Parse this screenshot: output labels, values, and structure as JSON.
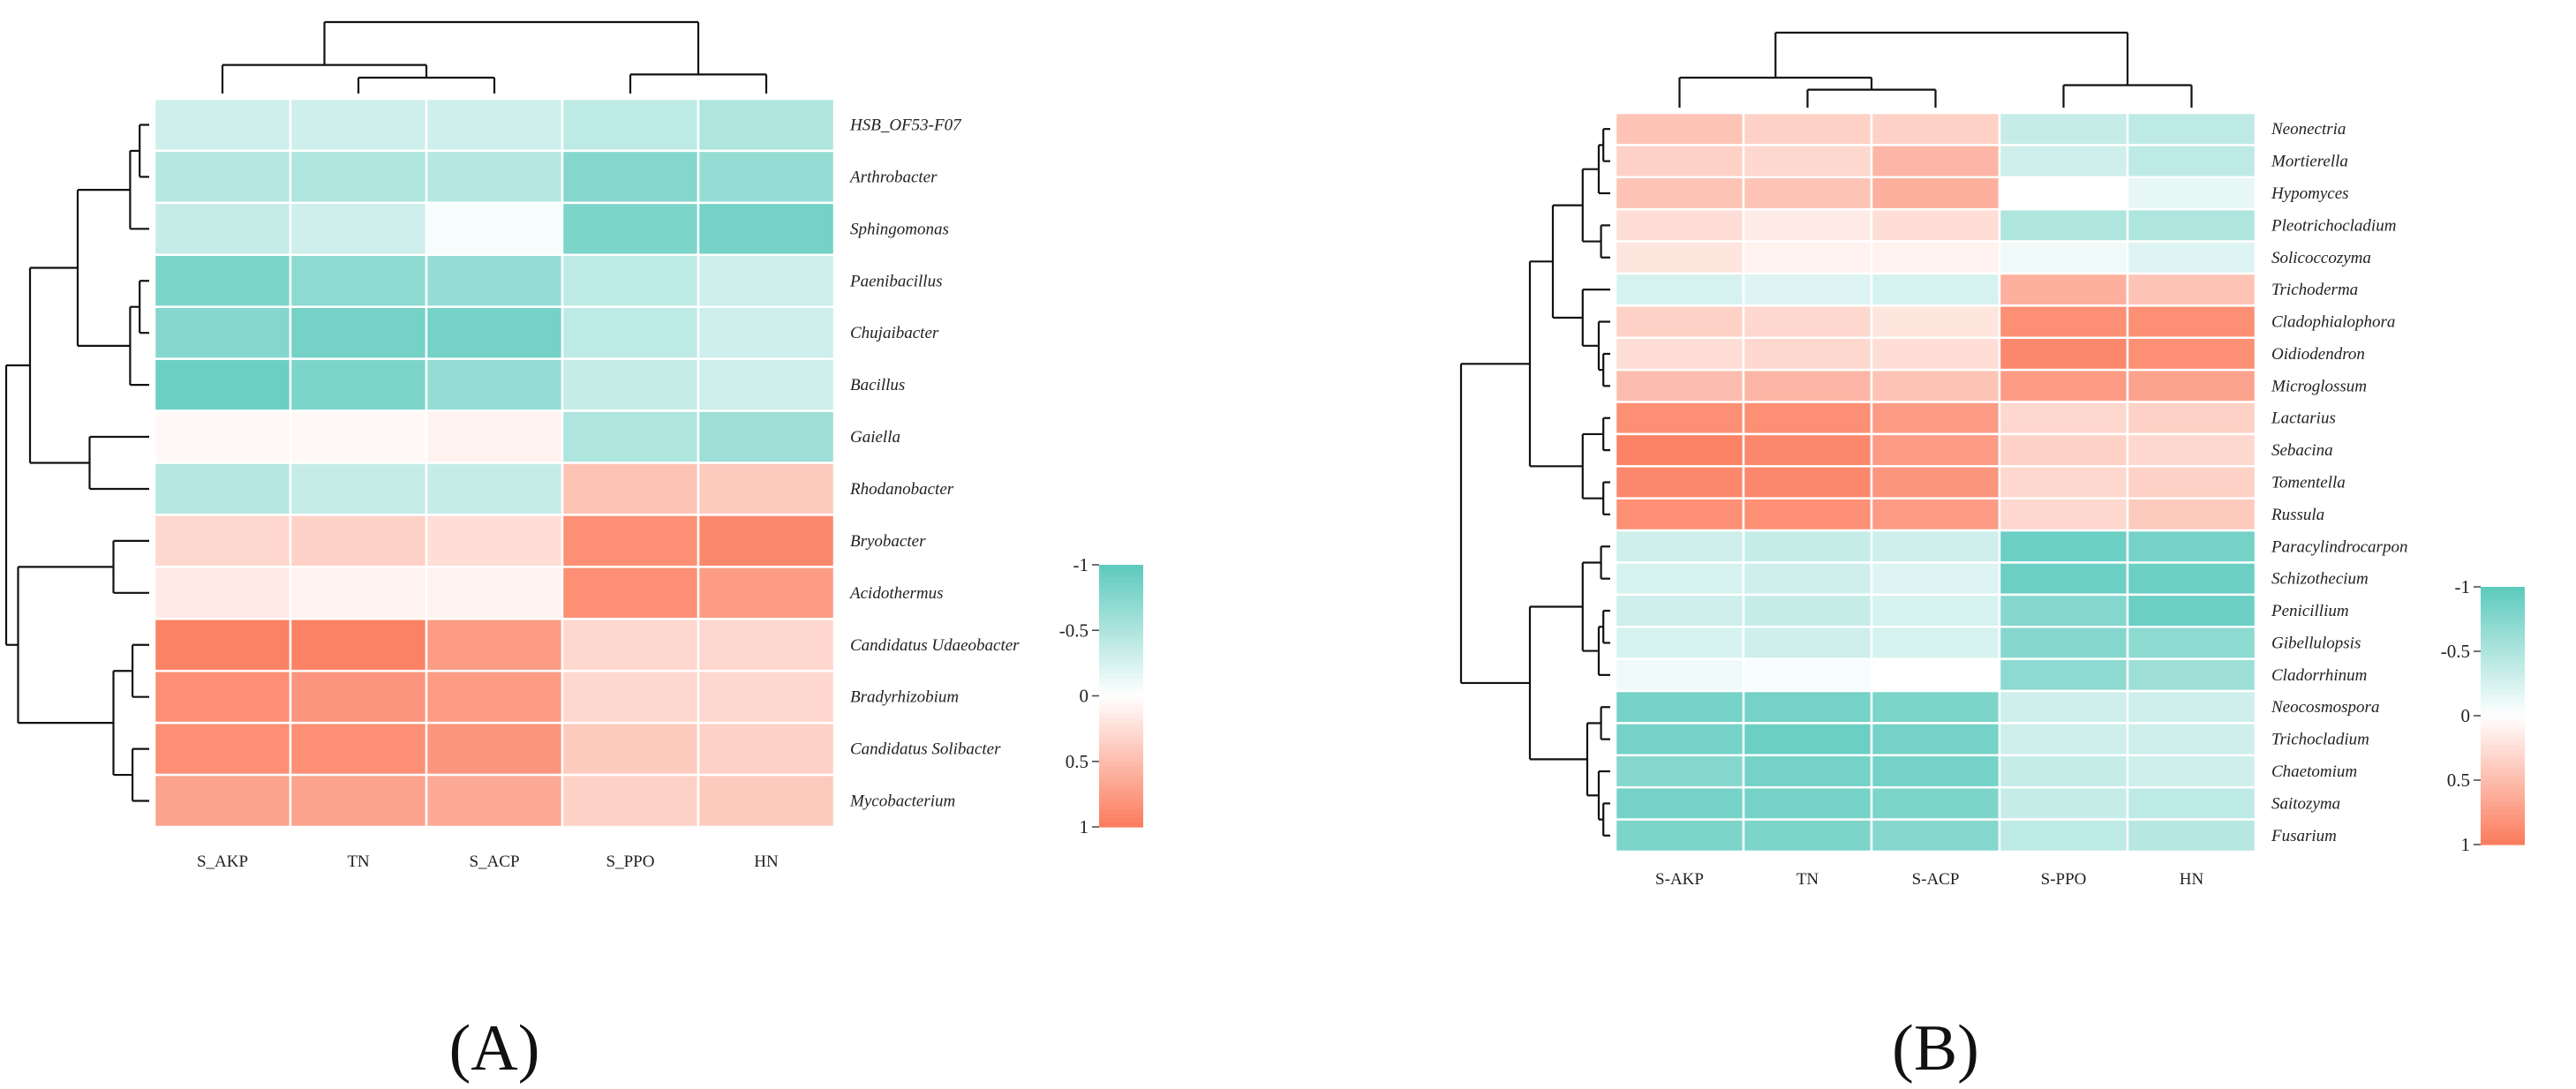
{
  "colors": {
    "negative": "#5ccabd",
    "neutral": "#ffffff",
    "positive": "#fb7b5c",
    "grid": "#ffffff"
  },
  "chart_data": [
    {
      "type": "heatmap",
      "panel_label": "(A)",
      "columns": [
        "S_AKP",
        "TN",
        "S_ACP",
        "S_PPO",
        "HN"
      ],
      "rows": [
        "HSB_OF53-F07",
        "Arthrobacter",
        "Sphingomonas",
        "Paenibacillus",
        "Chujaibacter",
        "Bacillus",
        "Gaiella",
        "Rhodanobacter",
        "Bryobacter",
        "Acidothermus",
        "Candidatus Udaeobacter",
        "Bradyrhizobium",
        "Candidatus Solibacter",
        "Mycobacterium"
      ],
      "values": [
        [
          -0.3,
          -0.3,
          -0.3,
          -0.4,
          -0.5
        ],
        [
          -0.45,
          -0.5,
          -0.45,
          -0.75,
          -0.65
        ],
        [
          -0.35,
          -0.3,
          -0.05,
          -0.8,
          -0.85
        ],
        [
          -0.8,
          -0.7,
          -0.65,
          -0.4,
          -0.3
        ],
        [
          -0.75,
          -0.85,
          -0.85,
          -0.4,
          -0.3
        ],
        [
          -0.9,
          -0.8,
          -0.65,
          -0.35,
          -0.3
        ],
        [
          0.05,
          0.05,
          0.1,
          -0.5,
          -0.6
        ],
        [
          -0.45,
          -0.35,
          -0.35,
          0.45,
          0.4
        ],
        [
          0.3,
          0.35,
          0.25,
          0.85,
          0.9
        ],
        [
          0.15,
          0.1,
          0.1,
          0.85,
          0.75
        ],
        [
          0.95,
          0.95,
          0.75,
          0.3,
          0.3
        ],
        [
          0.85,
          0.8,
          0.75,
          0.3,
          0.3
        ],
        [
          0.85,
          0.85,
          0.8,
          0.4,
          0.35
        ],
        [
          0.7,
          0.7,
          0.65,
          0.35,
          0.4
        ]
      ],
      "colorbar": {
        "ticks": [
          -1,
          -0.5,
          0,
          0.5,
          1
        ],
        "tick_labels": [
          "-1",
          "-0.5",
          "0",
          "0.5",
          "1"
        ],
        "range": [
          -1,
          1
        ]
      }
    },
    {
      "type": "heatmap",
      "panel_label": "(B)",
      "columns": [
        "S-AKP",
        "TN",
        "S-ACP",
        "S-PPO",
        "HN"
      ],
      "rows": [
        "Neonectria",
        "Mortierella",
        "Hypomyces",
        "Pleotrichocladium",
        "Solicoccozyma",
        "Trichoderma",
        "Cladophialophora",
        "Oidiodendron",
        "Microglossum",
        "Lactarius",
        "Sebacina",
        "Tomentella",
        "Russula",
        "Paracylindrocarpon",
        "Schizothecium",
        "Penicillium",
        "Gibellulopsis",
        "Cladorrhinum",
        "Neocosmospora",
        "Trichocladium",
        "Chaetomium",
        "Saitozyma",
        "Fusarium"
      ],
      "values": [
        [
          0.45,
          0.35,
          0.35,
          -0.35,
          -0.4
        ],
        [
          0.35,
          0.3,
          0.55,
          -0.3,
          -0.4
        ],
        [
          0.45,
          0.45,
          0.6,
          0.0,
          -0.15
        ],
        [
          0.25,
          0.15,
          0.25,
          -0.5,
          -0.5
        ],
        [
          0.2,
          0.1,
          0.1,
          -0.1,
          -0.2
        ],
        [
          -0.25,
          -0.2,
          -0.25,
          0.6,
          0.45
        ],
        [
          0.35,
          0.3,
          0.2,
          0.85,
          0.85
        ],
        [
          0.25,
          0.3,
          0.25,
          0.9,
          0.85
        ],
        [
          0.5,
          0.55,
          0.45,
          0.75,
          0.7
        ],
        [
          0.85,
          0.85,
          0.75,
          0.3,
          0.35
        ],
        [
          0.95,
          0.9,
          0.75,
          0.35,
          0.3
        ],
        [
          0.9,
          0.9,
          0.8,
          0.3,
          0.35
        ],
        [
          0.85,
          0.85,
          0.75,
          0.3,
          0.4
        ],
        [
          -0.3,
          -0.35,
          -0.3,
          -0.9,
          -0.85
        ],
        [
          -0.25,
          -0.3,
          -0.2,
          -0.9,
          -0.9
        ],
        [
          -0.3,
          -0.35,
          -0.25,
          -0.75,
          -0.9
        ],
        [
          -0.25,
          -0.3,
          -0.25,
          -0.75,
          -0.7
        ],
        [
          -0.1,
          -0.05,
          0.0,
          -0.7,
          -0.6
        ],
        [
          -0.85,
          -0.85,
          -0.8,
          -0.3,
          -0.3
        ],
        [
          -0.85,
          -0.9,
          -0.85,
          -0.3,
          -0.3
        ],
        [
          -0.75,
          -0.85,
          -0.85,
          -0.35,
          -0.3
        ],
        [
          -0.85,
          -0.85,
          -0.8,
          -0.35,
          -0.4
        ],
        [
          -0.8,
          -0.8,
          -0.75,
          -0.4,
          -0.45
        ]
      ],
      "colorbar": {
        "ticks": [
          -1,
          -0.5,
          0,
          0.5,
          1
        ],
        "tick_labels": [
          "-1",
          "-0.5",
          "0",
          "0.5",
          "1"
        ],
        "range": [
          -1,
          1
        ]
      }
    }
  ]
}
